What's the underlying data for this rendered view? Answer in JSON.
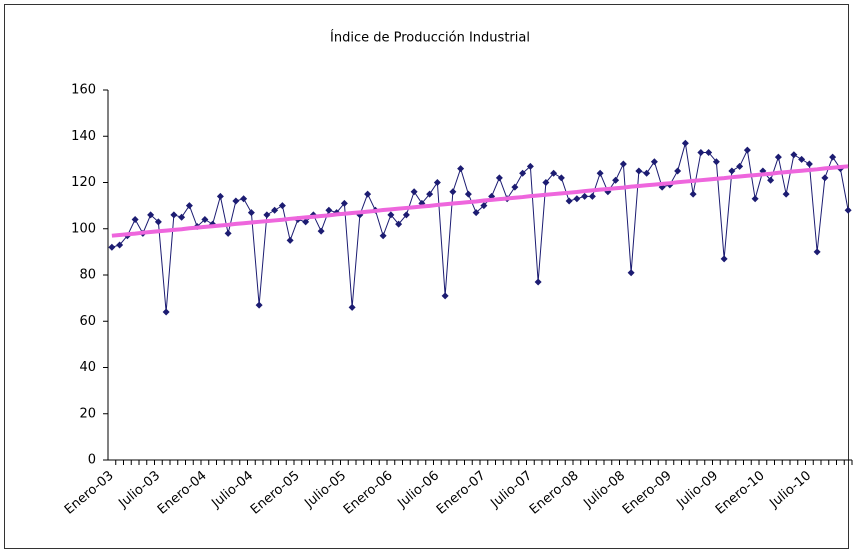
{
  "chart_data": {
    "type": "line",
    "title": "Índice de Producción Industrial",
    "categories": [
      "Enero-03",
      null,
      null,
      null,
      null,
      null,
      "Julio-03",
      null,
      null,
      null,
      null,
      null,
      "Enero-04",
      null,
      null,
      null,
      null,
      null,
      "Julio-04",
      null,
      null,
      null,
      null,
      null,
      "Enero-05",
      null,
      null,
      null,
      null,
      null,
      "Julio-05",
      null,
      null,
      null,
      null,
      null,
      "Enero-06",
      null,
      null,
      null,
      null,
      null,
      "Julio-06",
      null,
      null,
      null,
      null,
      null,
      "Enero-07",
      null,
      null,
      null,
      null,
      null,
      "Julio-07",
      null,
      null,
      null,
      null,
      null,
      "Enero-08",
      null,
      null,
      null,
      null,
      null,
      "Julio-08",
      null,
      null,
      null,
      null,
      null,
      "Enero-09",
      null,
      null,
      null,
      null,
      null,
      "Julio-09",
      null,
      null,
      null,
      null,
      null,
      "Enero-10",
      null,
      null,
      null,
      null,
      null,
      "Julio-10",
      null,
      null,
      null,
      null,
      null
    ],
    "series": [
      {
        "color": "#1c1c72",
        "markers": true,
        "values": [
          92,
          93,
          97,
          104,
          98,
          106,
          103,
          64,
          106,
          105,
          110,
          101,
          104,
          102,
          114,
          98,
          112,
          113,
          107,
          67,
          106,
          108,
          110,
          95,
          104,
          103,
          106,
          99,
          108,
          107,
          111,
          66,
          106,
          115,
          108,
          97,
          106,
          102,
          106,
          116,
          111,
          115,
          120,
          71,
          116,
          126,
          115,
          107,
          110,
          114,
          122,
          113,
          118,
          124,
          127,
          77,
          120,
          124,
          122,
          112,
          113,
          114,
          114,
          124,
          116,
          121,
          128,
          81,
          125,
          124,
          129,
          118,
          119,
          125,
          137,
          115,
          133,
          133,
          129,
          87,
          125,
          127,
          134,
          113,
          125,
          121,
          131,
          115,
          132,
          130,
          128,
          90,
          122,
          131,
          126,
          108
        ]
      },
      {
        "color": "#ee66dd",
        "markers": false,
        "values": [
          97.0,
          97.3,
          97.6,
          97.9,
          98.3,
          98.6,
          98.9,
          99.2,
          99.5,
          99.8,
          100.2,
          100.5,
          100.8,
          101.1,
          101.4,
          101.7,
          102.1,
          102.4,
          102.7,
          103.0,
          103.3,
          103.6,
          103.9,
          104.3,
          104.6,
          104.9,
          105.2,
          105.5,
          105.8,
          106.2,
          106.5,
          106.8,
          107.1,
          107.4,
          107.7,
          108.1,
          108.4,
          108.7,
          109.0,
          109.3,
          109.6,
          109.9,
          110.3,
          110.6,
          110.9,
          111.2,
          111.5,
          111.8,
          112.2,
          112.5,
          112.8,
          113.1,
          113.4,
          113.7,
          114.1,
          114.4,
          114.7,
          115.0,
          115.3,
          115.6,
          115.9,
          116.3,
          116.6,
          116.9,
          117.2,
          117.5,
          117.8,
          118.2,
          118.5,
          118.8,
          119.1,
          119.4,
          119.7,
          120.1,
          120.4,
          120.7,
          121.0,
          121.3,
          121.6,
          121.9,
          122.3,
          122.6,
          122.9,
          123.2,
          123.5,
          123.8,
          124.2,
          124.5,
          124.8,
          125.1,
          125.4,
          125.7,
          126.1,
          126.4,
          126.7,
          127.0
        ]
      }
    ],
    "ylim": [
      0,
      160
    ],
    "yticks": [
      0,
      20,
      40,
      60,
      80,
      100,
      120,
      140,
      160
    ]
  }
}
